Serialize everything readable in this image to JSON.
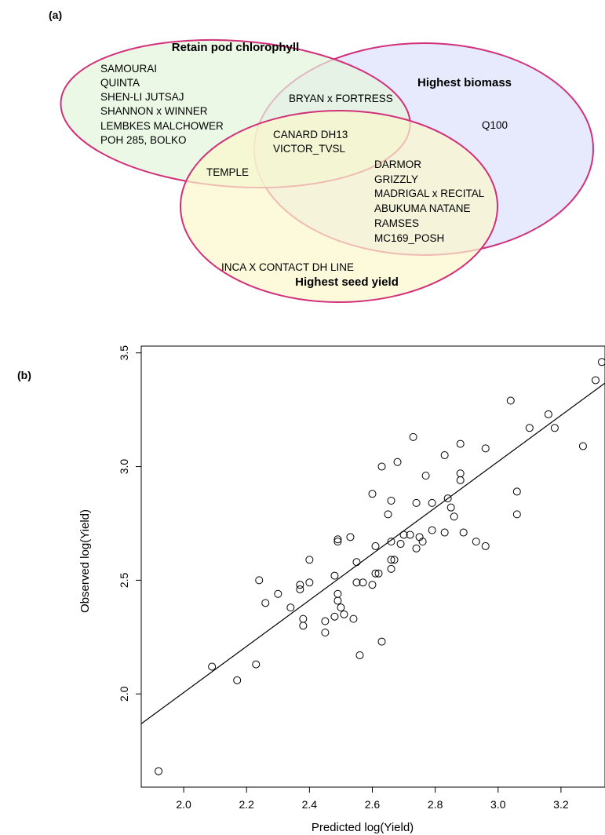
{
  "panel_labels": {
    "a": "(a)",
    "b": "(b)"
  },
  "venn": {
    "sets": [
      {
        "title": "Retain pod chlorophyll",
        "color": "#e4f5dc"
      },
      {
        "title": "Highest biomass",
        "color": "#dde1fb"
      },
      {
        "title": "Highest seed yield",
        "color": "#fbf8cc"
      }
    ],
    "outline_color": "#d1307a",
    "regions": {
      "chlorophyll_only": [
        "SAMOURAI",
        "QUINTA",
        "SHEN-LI JUTSAJ",
        "SHANNON x WINNER",
        "LEMBKES MALCHOWER",
        "POH 285, BOLKO"
      ],
      "chlorophyll_biomass": [
        "BRYAN x FORTRESS"
      ],
      "biomass_only": [
        "Q100"
      ],
      "all_three": [
        "CANARD DH13",
        "VICTOR_TVSL"
      ],
      "chlorophyll_seed": [
        "TEMPLE"
      ],
      "biomass_seed": [
        "DARMOR",
        "GRIZZLY",
        "MADRIGAL x RECITAL",
        "ABUKUMA NATANE",
        "RAMSES",
        "MC169_POSH"
      ],
      "seed_only": [
        "INCA X CONTACT DH LINE"
      ]
    }
  },
  "chart_data": {
    "type": "scatter",
    "xlabel": "Predicted log(Yield)",
    "ylabel": "Observed log(Yield)",
    "xlim": [
      1.865,
      3.34
    ],
    "ylim": [
      1.59,
      3.53
    ],
    "xticks": [
      "2.0",
      "2.2",
      "2.4",
      "2.6",
      "2.8",
      "3.0",
      "3.2"
    ],
    "yticks": [
      "2.0",
      "2.5",
      "3.0",
      "3.5"
    ],
    "regression_line": {
      "intercept": -0.026,
      "slope": 1.016
    },
    "points": [
      [
        1.92,
        1.66
      ],
      [
        2.09,
        2.12
      ],
      [
        2.17,
        2.06
      ],
      [
        2.23,
        2.13
      ],
      [
        2.24,
        2.5
      ],
      [
        2.26,
        2.4
      ],
      [
        2.3,
        2.44
      ],
      [
        2.34,
        2.38
      ],
      [
        2.37,
        2.48
      ],
      [
        2.37,
        2.46
      ],
      [
        2.38,
        2.33
      ],
      [
        2.38,
        2.3
      ],
      [
        2.4,
        2.59
      ],
      [
        2.4,
        2.49
      ],
      [
        2.45,
        2.32
      ],
      [
        2.45,
        2.27
      ],
      [
        2.48,
        2.34
      ],
      [
        2.48,
        2.52
      ],
      [
        2.49,
        2.44
      ],
      [
        2.49,
        2.68
      ],
      [
        2.49,
        2.67
      ],
      [
        2.49,
        2.41
      ],
      [
        2.5,
        2.38
      ],
      [
        2.51,
        2.35
      ],
      [
        2.53,
        2.69
      ],
      [
        2.54,
        2.33
      ],
      [
        2.55,
        2.58
      ],
      [
        2.55,
        2.49
      ],
      [
        2.56,
        2.17
      ],
      [
        2.57,
        2.49
      ],
      [
        2.6,
        2.88
      ],
      [
        2.6,
        2.48
      ],
      [
        2.61,
        2.53
      ],
      [
        2.61,
        2.65
      ],
      [
        2.62,
        2.53
      ],
      [
        2.63,
        3.0
      ],
      [
        2.63,
        2.23
      ],
      [
        2.65,
        2.79
      ],
      [
        2.66,
        2.67
      ],
      [
        2.66,
        2.59
      ],
      [
        2.66,
        2.55
      ],
      [
        2.66,
        2.85
      ],
      [
        2.67,
        2.59
      ],
      [
        2.68,
        3.02
      ],
      [
        2.69,
        2.66
      ],
      [
        2.7,
        2.7
      ],
      [
        2.72,
        2.7
      ],
      [
        2.73,
        3.13
      ],
      [
        2.74,
        2.84
      ],
      [
        2.74,
        2.64
      ],
      [
        2.75,
        2.69
      ],
      [
        2.76,
        2.67
      ],
      [
        2.77,
        2.96
      ],
      [
        2.79,
        2.72
      ],
      [
        2.79,
        2.84
      ],
      [
        2.83,
        3.05
      ],
      [
        2.83,
        2.71
      ],
      [
        2.84,
        2.86
      ],
      [
        2.85,
        2.82
      ],
      [
        2.86,
        2.78
      ],
      [
        2.88,
        2.97
      ],
      [
        2.88,
        2.94
      ],
      [
        2.88,
        3.1
      ],
      [
        2.89,
        2.71
      ],
      [
        2.93,
        2.67
      ],
      [
        2.96,
        3.08
      ],
      [
        2.96,
        2.65
      ],
      [
        3.04,
        3.29
      ],
      [
        3.06,
        2.89
      ],
      [
        3.06,
        2.79
      ],
      [
        3.1,
        3.17
      ],
      [
        3.16,
        3.23
      ],
      [
        3.18,
        3.17
      ],
      [
        3.27,
        3.09
      ],
      [
        3.31,
        3.38
      ],
      [
        3.33,
        3.46
      ]
    ]
  }
}
